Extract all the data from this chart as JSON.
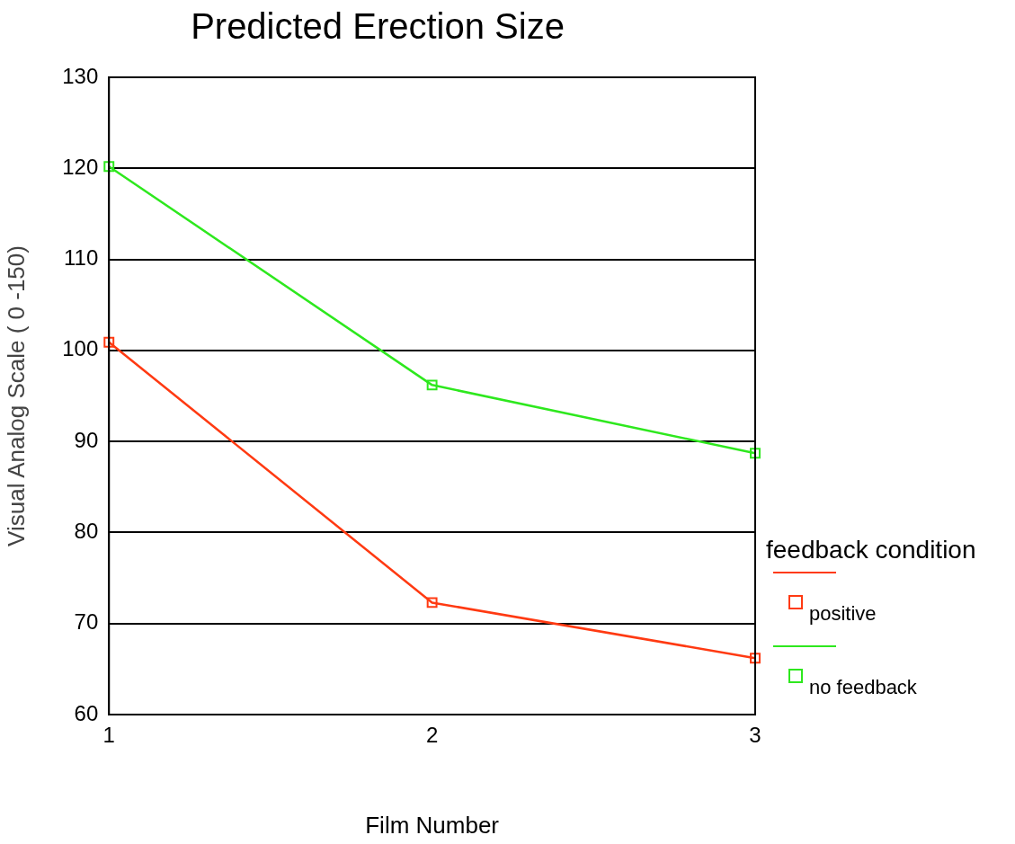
{
  "chart_data": {
    "type": "line",
    "title": "Predicted Erection Size",
    "xlabel": "Film Number",
    "ylabel": "Visual Analog Scale ( 0 -150)",
    "legend_title": "feedback condition",
    "x": [
      1,
      2,
      3
    ],
    "xlim": [
      1,
      3
    ],
    "xticks": [
      1,
      2,
      3
    ],
    "ylim": [
      60,
      130
    ],
    "yticks": [
      60,
      70,
      80,
      90,
      100,
      110,
      120,
      130
    ],
    "series": [
      {
        "name": "positive",
        "color": "#ff3a12",
        "values": [
          100.9,
          72.3,
          66.2
        ]
      },
      {
        "name": "no feedback",
        "color": "#2ee81e",
        "values": [
          120.2,
          96.2,
          88.7
        ]
      }
    ],
    "grid": "y",
    "legend": "right",
    "marker": "square",
    "line_style": "solid"
  }
}
